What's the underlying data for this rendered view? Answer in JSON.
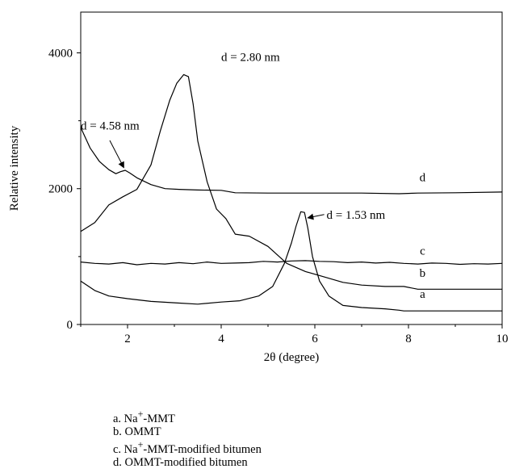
{
  "chart_data": {
    "type": "line",
    "title": "",
    "xlabel": "2θ (degree)",
    "ylabel": "Relative intensity",
    "xlim": [
      1,
      10
    ],
    "ylim": [
      0,
      4600
    ],
    "xticks": [
      2,
      4,
      6,
      8,
      10
    ],
    "yticks": [
      0,
      2000,
      4000
    ],
    "grid": false,
    "series": [
      {
        "name": "a",
        "color": "#000000",
        "x": [
          1.0,
          1.3,
          1.6,
          2.0,
          2.5,
          3.0,
          3.5,
          4.0,
          4.4,
          4.8,
          5.1,
          5.35,
          5.5,
          5.6,
          5.7,
          5.78,
          5.85,
          5.95,
          6.1,
          6.3,
          6.6,
          7.0,
          7.5,
          7.8,
          7.9,
          8.5,
          9.0,
          9.5,
          10.0
        ],
        "y": [
          640,
          500,
          420,
          380,
          340,
          320,
          300,
          330,
          350,
          420,
          560,
          900,
          1200,
          1450,
          1660,
          1650,
          1420,
          1000,
          640,
          420,
          280,
          250,
          230,
          210,
          200,
          200,
          200,
          200,
          200
        ]
      },
      {
        "name": "b",
        "color": "#000000",
        "x": [
          1.0,
          1.3,
          1.6,
          1.9,
          2.2,
          2.5,
          2.7,
          2.9,
          3.05,
          3.2,
          3.3,
          3.4,
          3.5,
          3.7,
          3.9,
          4.1,
          4.3,
          4.6,
          5.0,
          5.4,
          5.8,
          6.2,
          6.6,
          7.0,
          7.5,
          7.9,
          8.2,
          9.0,
          10.0
        ],
        "y": [
          1370,
          1500,
          1760,
          1880,
          1990,
          2350,
          2850,
          3300,
          3550,
          3680,
          3650,
          3250,
          2700,
          2100,
          1700,
          1560,
          1330,
          1300,
          1150,
          900,
          780,
          700,
          620,
          580,
          560,
          560,
          520,
          520,
          520
        ]
      },
      {
        "name": "c",
        "color": "#000000",
        "x": [
          1.0,
          1.3,
          1.6,
          1.9,
          2.2,
          2.5,
          2.8,
          3.1,
          3.4,
          3.7,
          4.0,
          4.3,
          4.6,
          4.9,
          5.2,
          5.5,
          5.8,
          6.1,
          6.4,
          6.7,
          7.0,
          7.3,
          7.6,
          7.9,
          8.2,
          8.5,
          8.8,
          9.1,
          9.4,
          9.7,
          10.0
        ],
        "y": [
          920,
          900,
          890,
          910,
          880,
          900,
          890,
          910,
          895,
          920,
          900,
          905,
          910,
          930,
          920,
          935,
          940,
          930,
          925,
          910,
          920,
          905,
          915,
          900,
          890,
          905,
          900,
          885,
          895,
          890,
          900
        ]
      },
      {
        "name": "d",
        "color": "#000000",
        "x": [
          1.0,
          1.2,
          1.4,
          1.6,
          1.75,
          1.85,
          1.95,
          2.05,
          2.2,
          2.5,
          2.8,
          3.1,
          3.5,
          4.0,
          4.3,
          5.0,
          6.0,
          7.0,
          7.8,
          8.2,
          9.0,
          10.0
        ],
        "y": [
          2900,
          2600,
          2400,
          2280,
          2220,
          2250,
          2270,
          2230,
          2160,
          2060,
          2000,
          1990,
          1980,
          1975,
          1940,
          1935,
          1935,
          1935,
          1925,
          1935,
          1940,
          1950
        ]
      }
    ],
    "curve_labels": [
      {
        "text": "a",
        "x": 8.3,
        "y": 390
      },
      {
        "text": "b",
        "x": 8.3,
        "y": 700
      },
      {
        "text": "c",
        "x": 8.3,
        "y": 1030
      },
      {
        "text": "d",
        "x": 8.3,
        "y": 2110
      }
    ],
    "annotations": [
      {
        "text": "d = 2.80 nm",
        "x": 4.0,
        "y": 3880
      },
      {
        "text": "d = 4.58 nm",
        "x": 1.0,
        "y": 2870,
        "arrow_from": [
          1.62,
          2710
        ],
        "arrow_to": [
          1.92,
          2310
        ]
      },
      {
        "text": "d = 1.53 nm",
        "x": 6.25,
        "y": 1560,
        "arrow_from": [
          6.2,
          1620
        ],
        "arrow_to": [
          5.85,
          1570
        ]
      }
    ]
  },
  "legend": [
    {
      "prefix": "a. Na",
      "sup": "+",
      "suffix": "-MMT"
    },
    {
      "prefix": "b. OMMT",
      "sup": "",
      "suffix": ""
    },
    {
      "prefix": "c. Na",
      "sup": "+",
      "suffix": "-MMT-modified bitumen"
    },
    {
      "prefix": "d. OMMT-modified bitumen",
      "sup": "",
      "suffix": ""
    }
  ]
}
